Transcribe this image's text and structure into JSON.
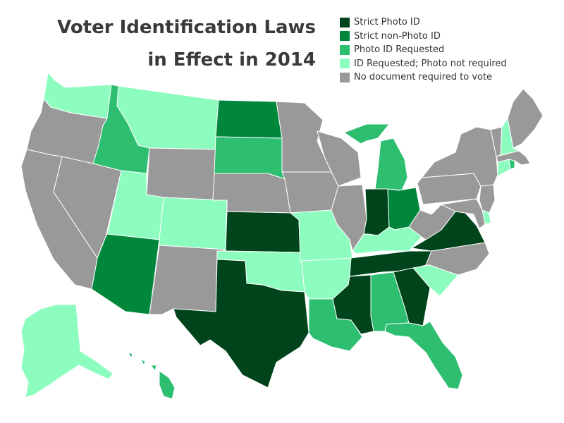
{
  "title": {
    "line1": "Voter Identification Laws",
    "line2": "in Effect in 2014"
  },
  "legend": [
    {
      "key": "strict_photo",
      "label": "Strict Photo ID",
      "color": "#00441b"
    },
    {
      "key": "strict_nonphoto",
      "label": "Strict non-Photo ID",
      "color": "#00873c"
    },
    {
      "key": "photo_requested",
      "label": "Photo ID Requested",
      "color": "#2dbe70"
    },
    {
      "key": "id_requested",
      "label": "ID Requested; Photo not required",
      "color": "#8dfcbf"
    },
    {
      "key": "no_doc",
      "label": "No document required to vote",
      "color": "#999999"
    }
  ],
  "states": {
    "WA": "id_requested",
    "OR": "no_doc",
    "CA": "no_doc",
    "NV": "no_doc",
    "ID": "photo_requested",
    "MT": "id_requested",
    "WY": "no_doc",
    "UT": "id_requested",
    "AZ": "strict_nonphoto",
    "CO": "id_requested",
    "NM": "no_doc",
    "ND": "strict_nonphoto",
    "SD": "photo_requested",
    "NE": "no_doc",
    "KS": "strict_photo",
    "OK": "id_requested",
    "TX": "strict_photo",
    "MN": "no_doc",
    "IA": "no_doc",
    "MO": "id_requested",
    "AR": "id_requested",
    "LA": "photo_requested",
    "WI": "no_doc",
    "IL": "no_doc",
    "IN": "strict_photo",
    "MI": "photo_requested",
    "OH": "strict_nonphoto",
    "KY": "id_requested",
    "TN": "strict_photo",
    "MS": "strict_photo",
    "AL": "photo_requested",
    "GA": "strict_photo",
    "FL": "photo_requested",
    "SC": "id_requested",
    "NC": "no_doc",
    "VA": "strict_photo",
    "WV": "no_doc",
    "PA": "no_doc",
    "NY": "no_doc",
    "NJ": "no_doc",
    "DE": "id_requested",
    "MD": "no_doc",
    "CT": "id_requested",
    "RI": "photo_requested",
    "MA": "no_doc",
    "VT": "no_doc",
    "NH": "id_requested",
    "ME": "no_doc",
    "AK": "id_requested",
    "HI": "photo_requested"
  }
}
